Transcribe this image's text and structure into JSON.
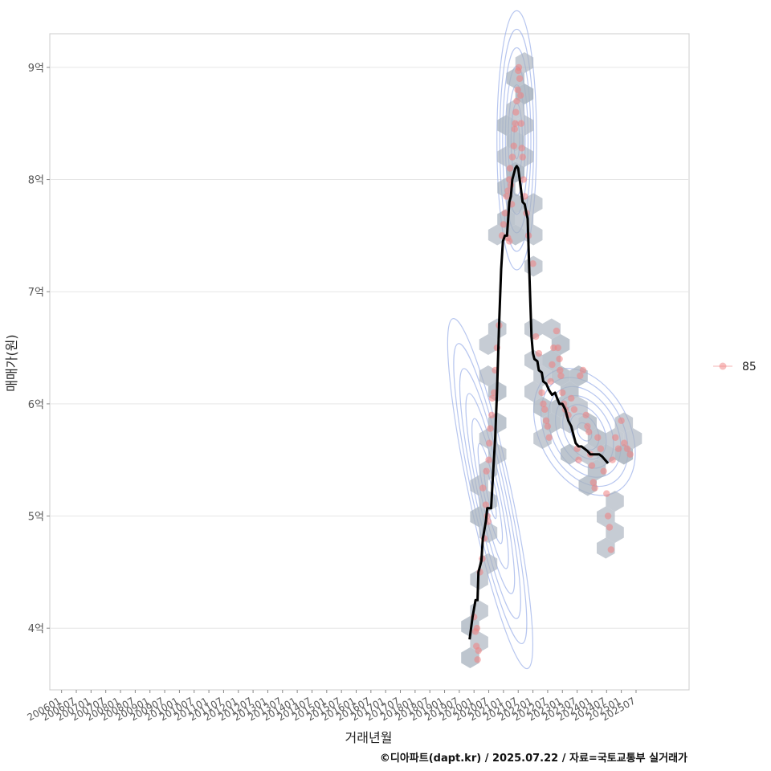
{
  "chart_data": {
    "type": "scatter",
    "title": "",
    "xlabel": "거래년월",
    "ylabel": "매매가(원)",
    "caption": "©디아파트(dapt.kr) / 2025.07.22 / 자료=국토교통부 실거래가",
    "x_tick_labels": [
      "200601",
      "200607",
      "200701",
      "200707",
      "200801",
      "200807",
      "200901",
      "200907",
      "201001",
      "201007",
      "201101",
      "201107",
      "201201",
      "201207",
      "201301",
      "201307",
      "201401",
      "201407",
      "201501",
      "201507",
      "201601",
      "201607",
      "201701",
      "201707",
      "201801",
      "201807",
      "201901",
      "201907",
      "202001",
      "202007",
      "202101",
      "202107",
      "202201",
      "202207",
      "202301",
      "202307",
      "202401",
      "202407",
      "202501",
      "202507"
    ],
    "y_ticks": [
      4,
      5,
      6,
      7,
      8,
      9
    ],
    "y_tick_labels": [
      "4억",
      "5억",
      "6억",
      "7억",
      "8억",
      "9억"
    ],
    "xlim": [
      2005.6,
      2027.3
    ],
    "ylim": [
      3.45,
      9.3
    ],
    "legend": {
      "entries": [
        "85"
      ],
      "placement": "right"
    },
    "colors": {
      "points": "#f08080",
      "hex": "#a7b1bd",
      "contour": "#9fb3ea",
      "trend": "#000000",
      "grid": "#e6e6e6",
      "panel_border": "#cccccc"
    },
    "series": [
      {
        "name": "85",
        "kind": "scatter",
        "points": [
          [
            2020.0,
            4.1
          ],
          [
            2020.05,
            3.97
          ],
          [
            2020.08,
            3.84
          ],
          [
            2020.1,
            4.0
          ],
          [
            2020.12,
            3.72
          ],
          [
            2020.15,
            3.8
          ],
          [
            2020.2,
            4.5
          ],
          [
            2020.28,
            4.62
          ],
          [
            2020.35,
            4.8
          ],
          [
            2020.4,
            5.1
          ],
          [
            2020.45,
            5.0
          ],
          [
            2020.48,
            4.95
          ],
          [
            2020.3,
            5.25
          ],
          [
            2020.42,
            5.4
          ],
          [
            2020.5,
            5.5
          ],
          [
            2020.52,
            5.65
          ],
          [
            2020.55,
            5.78
          ],
          [
            2020.6,
            5.9
          ],
          [
            2020.62,
            6.05
          ],
          [
            2020.68,
            6.1
          ],
          [
            2020.72,
            6.3
          ],
          [
            2020.78,
            6.5
          ],
          [
            2020.85,
            6.7
          ],
          [
            2020.95,
            7.5
          ],
          [
            2021.0,
            7.6
          ],
          [
            2021.05,
            7.7
          ],
          [
            2021.1,
            7.85
          ],
          [
            2021.15,
            7.9
          ],
          [
            2021.2,
            8.0
          ],
          [
            2021.22,
            8.1
          ],
          [
            2021.25,
            7.95
          ],
          [
            2021.28,
            7.78
          ],
          [
            2021.3,
            8.2
          ],
          [
            2021.35,
            8.3
          ],
          [
            2021.38,
            8.45
          ],
          [
            2021.4,
            8.5
          ],
          [
            2021.42,
            8.6
          ],
          [
            2021.45,
            8.7
          ],
          [
            2021.48,
            8.8
          ],
          [
            2021.5,
            8.97
          ],
          [
            2021.52,
            9.0
          ],
          [
            2021.55,
            8.9
          ],
          [
            2021.58,
            8.75
          ],
          [
            2021.6,
            8.5
          ],
          [
            2021.62,
            8.28
          ],
          [
            2021.65,
            8.2
          ],
          [
            2021.68,
            8.0
          ],
          [
            2021.72,
            7.85
          ],
          [
            2021.78,
            7.7
          ],
          [
            2021.85,
            7.5
          ],
          [
            2021.2,
            7.45
          ],
          [
            2021.15,
            7.48
          ],
          [
            2022.0,
            7.25
          ],
          [
            2022.1,
            6.6
          ],
          [
            2022.2,
            6.45
          ],
          [
            2022.3,
            6.1
          ],
          [
            2022.35,
            6.0
          ],
          [
            2022.4,
            5.95
          ],
          [
            2022.45,
            5.85
          ],
          [
            2022.5,
            5.8
          ],
          [
            2022.55,
            5.7
          ],
          [
            2022.6,
            6.2
          ],
          [
            2022.65,
            6.35
          ],
          [
            2022.7,
            6.5
          ],
          [
            2022.8,
            6.65
          ],
          [
            2022.85,
            6.5
          ],
          [
            2022.9,
            6.4
          ],
          [
            2022.92,
            6.3
          ],
          [
            2022.95,
            6.25
          ],
          [
            2023.0,
            6.1
          ],
          [
            2023.05,
            6.0
          ],
          [
            2023.1,
            5.95
          ],
          [
            2023.2,
            5.9
          ],
          [
            2023.3,
            6.05
          ],
          [
            2023.4,
            5.95
          ],
          [
            2023.5,
            5.6
          ],
          [
            2023.55,
            5.5
          ],
          [
            2023.6,
            6.25
          ],
          [
            2023.7,
            6.3
          ],
          [
            2023.8,
            5.9
          ],
          [
            2023.85,
            5.8
          ],
          [
            2023.9,
            5.75
          ],
          [
            2023.95,
            5.55
          ],
          [
            2024.0,
            5.45
          ],
          [
            2024.05,
            5.3
          ],
          [
            2024.1,
            5.25
          ],
          [
            2024.2,
            5.7
          ],
          [
            2024.3,
            5.6
          ],
          [
            2024.4,
            5.4
          ],
          [
            2024.5,
            5.2
          ],
          [
            2024.55,
            5.0
          ],
          [
            2024.6,
            4.9
          ],
          [
            2024.65,
            4.7
          ],
          [
            2024.7,
            5.5
          ],
          [
            2024.8,
            5.7
          ],
          [
            2024.9,
            5.6
          ],
          [
            2025.0,
            5.85
          ],
          [
            2025.1,
            5.65
          ],
          [
            2025.2,
            5.6
          ],
          [
            2025.3,
            5.55
          ]
        ]
      },
      {
        "name": "trend",
        "kind": "line",
        "points": [
          [
            2019.85,
            3.9
          ],
          [
            2019.95,
            4.1
          ],
          [
            2020.05,
            4.25
          ],
          [
            2020.12,
            4.25
          ],
          [
            2020.15,
            4.5
          ],
          [
            2020.25,
            4.6
          ],
          [
            2020.3,
            4.8
          ],
          [
            2020.4,
            4.95
          ],
          [
            2020.45,
            5.07
          ],
          [
            2020.58,
            5.07
          ],
          [
            2020.65,
            5.4
          ],
          [
            2020.72,
            5.7
          ],
          [
            2020.78,
            6.1
          ],
          [
            2020.85,
            6.7
          ],
          [
            2020.92,
            7.2
          ],
          [
            2020.98,
            7.45
          ],
          [
            2021.05,
            7.5
          ],
          [
            2021.12,
            7.5
          ],
          [
            2021.2,
            7.8
          ],
          [
            2021.25,
            7.85
          ],
          [
            2021.3,
            8.0
          ],
          [
            2021.4,
            8.1
          ],
          [
            2021.45,
            8.12
          ],
          [
            2021.5,
            8.1
          ],
          [
            2021.55,
            8.0
          ],
          [
            2021.65,
            7.8
          ],
          [
            2021.72,
            7.78
          ],
          [
            2021.78,
            7.7
          ],
          [
            2021.82,
            7.65
          ],
          [
            2021.85,
            7.4
          ],
          [
            2021.9,
            7.0
          ],
          [
            2021.95,
            6.6
          ],
          [
            2022.0,
            6.45
          ],
          [
            2022.05,
            6.4
          ],
          [
            2022.15,
            6.38
          ],
          [
            2022.2,
            6.3
          ],
          [
            2022.3,
            6.28
          ],
          [
            2022.35,
            6.2
          ],
          [
            2022.45,
            6.18
          ],
          [
            2022.55,
            6.12
          ],
          [
            2022.65,
            6.08
          ],
          [
            2022.75,
            6.1
          ],
          [
            2022.82,
            6.05
          ],
          [
            2022.9,
            6.0
          ],
          [
            2023.0,
            6.0
          ],
          [
            2023.1,
            5.95
          ],
          [
            2023.2,
            5.85
          ],
          [
            2023.3,
            5.8
          ],
          [
            2023.38,
            5.72
          ],
          [
            2023.45,
            5.65
          ],
          [
            2023.55,
            5.62
          ],
          [
            2023.65,
            5.62
          ],
          [
            2023.75,
            5.6
          ],
          [
            2023.85,
            5.58
          ],
          [
            2023.95,
            5.55
          ],
          [
            2024.05,
            5.55
          ],
          [
            2024.15,
            5.55
          ],
          [
            2024.25,
            5.55
          ],
          [
            2024.35,
            5.53
          ],
          [
            2024.45,
            5.5
          ],
          [
            2024.55,
            5.47
          ]
        ]
      }
    ]
  }
}
